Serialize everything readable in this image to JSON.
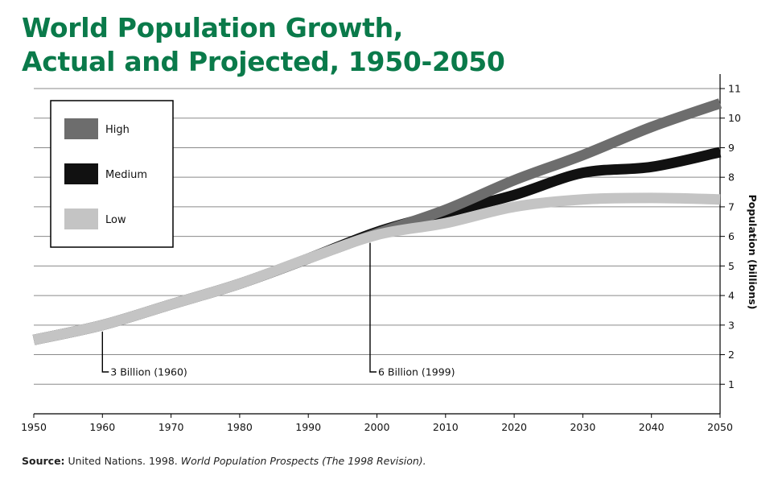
{
  "chart_data": {
    "type": "line",
    "title_lines": [
      "World Population Growth,",
      "Actual and Projected, 1950-2050"
    ],
    "xlabel": "",
    "ylabel": "Population (billions)",
    "xlim": [
      1950,
      2050
    ],
    "ylim": [
      0,
      11
    ],
    "x_ticks": [
      1950,
      1960,
      1970,
      1980,
      1990,
      2000,
      2010,
      2020,
      2030,
      2040,
      2050
    ],
    "y_ticks": [
      1,
      2,
      3,
      4,
      5,
      6,
      7,
      8,
      9,
      10,
      11
    ],
    "grid": true,
    "y_axis_side": "right",
    "legend_position": "top-left",
    "x": [
      1950,
      1960,
      1970,
      1980,
      1990,
      2000,
      2010,
      2020,
      2030,
      2040,
      2050
    ],
    "series": [
      {
        "name": "High",
        "color": "#6d6d6d",
        "values": [
          2.5,
          3.0,
          3.7,
          4.4,
          5.25,
          6.1,
          6.9,
          7.9,
          8.75,
          9.7,
          10.5
        ]
      },
      {
        "name": "Medium",
        "color": "#111111",
        "values": [
          2.5,
          3.0,
          3.7,
          4.4,
          5.25,
          6.15,
          6.8,
          7.4,
          8.15,
          8.35,
          8.85
        ]
      },
      {
        "name": "Low",
        "color": "#c4c4c4",
        "values": [
          2.5,
          3.0,
          3.7,
          4.4,
          5.25,
          6.05,
          6.45,
          7.0,
          7.25,
          7.3,
          7.25
        ]
      }
    ],
    "annotations": [
      {
        "text": "3 Billion (1960)",
        "x": 1960,
        "y": 3.0
      },
      {
        "text": "6 Billion (1999)",
        "x": 1999,
        "y": 6.0
      }
    ]
  },
  "source": {
    "label": "Source:",
    "text": " United Nations. 1998. ",
    "italic": "World Population Prospects (The 1998 Revision)."
  }
}
